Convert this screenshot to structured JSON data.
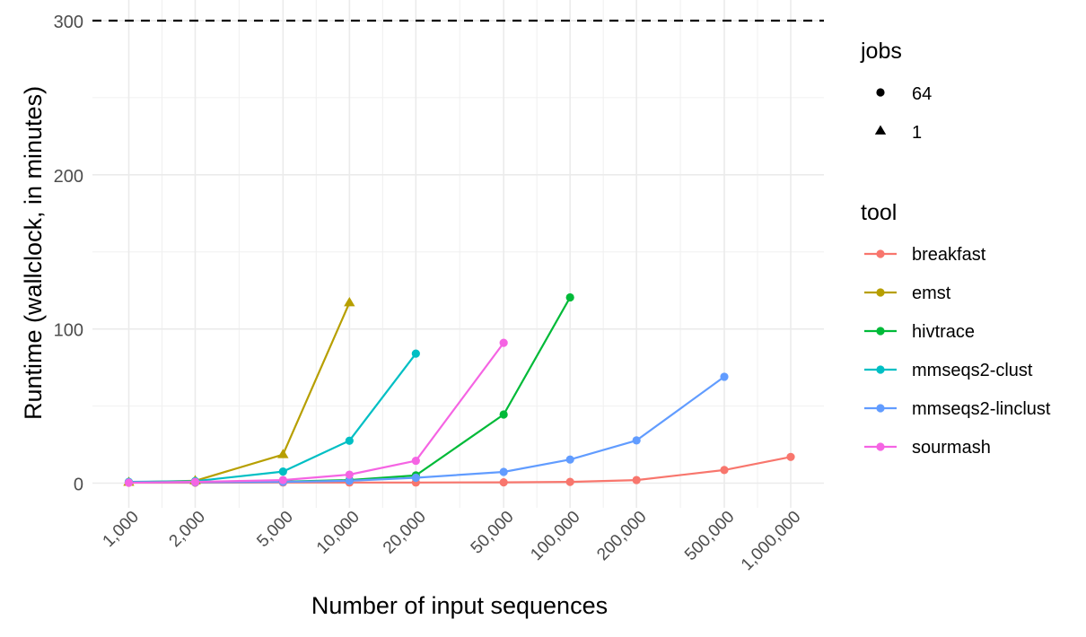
{
  "chart_data": {
    "type": "line",
    "xlabel": "Number of input sequences",
    "ylabel": "Runtime (wallclock, in minutes)",
    "x_scale": "log10",
    "xlim": [
      1000,
      1000000
    ],
    "ylim": [
      0,
      300
    ],
    "x_ticks": [
      1000,
      2000,
      5000,
      10000,
      20000,
      50000,
      100000,
      200000,
      500000,
      1000000
    ],
    "x_tick_labels": [
      "1,000",
      "2,000",
      "5,000",
      "10,000",
      "20,000",
      "50,000",
      "100,000",
      "200,000",
      "500,000",
      "1,000,000"
    ],
    "y_ticks": [
      0,
      100,
      200,
      300
    ],
    "y_tick_labels": [
      "0",
      "100",
      "200",
      "300"
    ],
    "reference_line": {
      "y": 300,
      "style": "dashed",
      "color": "#000000"
    },
    "grid": true,
    "legend_placement": "right",
    "legends": {
      "jobs": {
        "title": "jobs",
        "items": [
          {
            "label": "64",
            "shape": "circle"
          },
          {
            "label": "1",
            "shape": "triangle"
          }
        ]
      },
      "tool": {
        "title": "tool",
        "items": [
          "breakfast",
          "emst",
          "hivtrace",
          "mmseqs2-clust",
          "mmseqs2-linclust",
          "sourmash"
        ]
      }
    },
    "series": [
      {
        "name": "breakfast",
        "color": "#F8766D",
        "points": [
          {
            "x": 1000,
            "y": 0.3,
            "jobs": "64"
          },
          {
            "x": 2000,
            "y": 0.3,
            "jobs": "64"
          },
          {
            "x": 5000,
            "y": 0.4,
            "jobs": "64"
          },
          {
            "x": 10000,
            "y": 0.4,
            "jobs": "64"
          },
          {
            "x": 20000,
            "y": 0.4,
            "jobs": "64"
          },
          {
            "x": 50000,
            "y": 0.5,
            "jobs": "64"
          },
          {
            "x": 100000,
            "y": 0.8,
            "jobs": "64"
          },
          {
            "x": 200000,
            "y": 2,
            "jobs": "64"
          },
          {
            "x": 500000,
            "y": 8.5,
            "jobs": "64"
          },
          {
            "x": 1000000,
            "y": 17,
            "jobs": "64"
          }
        ]
      },
      {
        "name": "emst",
        "color": "#B79F00",
        "points": [
          {
            "x": 1000,
            "y": 0.5,
            "jobs": "1"
          },
          {
            "x": 2000,
            "y": 1.5,
            "jobs": "1"
          },
          {
            "x": 5000,
            "y": 18.5,
            "jobs": "1"
          },
          {
            "x": 10000,
            "y": 117,
            "jobs": "1"
          }
        ]
      },
      {
        "name": "hivtrace",
        "color": "#00BA38",
        "points": [
          {
            "x": 1000,
            "y": 0.5,
            "jobs": "64"
          },
          {
            "x": 2000,
            "y": 0.7,
            "jobs": "64"
          },
          {
            "x": 5000,
            "y": 1,
            "jobs": "64"
          },
          {
            "x": 10000,
            "y": 2,
            "jobs": "64"
          },
          {
            "x": 20000,
            "y": 5,
            "jobs": "64"
          },
          {
            "x": 50000,
            "y": 44.5,
            "jobs": "64"
          },
          {
            "x": 100000,
            "y": 120.5,
            "jobs": "64"
          }
        ]
      },
      {
        "name": "mmseqs2-clust",
        "color": "#00BFC4",
        "points": [
          {
            "x": 1000,
            "y": 0.8,
            "jobs": "64"
          },
          {
            "x": 2000,
            "y": 1.3,
            "jobs": "64"
          },
          {
            "x": 5000,
            "y": 7.5,
            "jobs": "64"
          },
          {
            "x": 10000,
            "y": 27.5,
            "jobs": "64"
          },
          {
            "x": 20000,
            "y": 84,
            "jobs": "64"
          }
        ]
      },
      {
        "name": "mmseqs2-linclust",
        "color": "#619CFF",
        "points": [
          {
            "x": 1000,
            "y": 0.5,
            "jobs": "64"
          },
          {
            "x": 2000,
            "y": 0.6,
            "jobs": "64"
          },
          {
            "x": 5000,
            "y": 0.8,
            "jobs": "64"
          },
          {
            "x": 10000,
            "y": 1.5,
            "jobs": "64"
          },
          {
            "x": 20000,
            "y": 3.5,
            "jobs": "64"
          },
          {
            "x": 50000,
            "y": 7.3,
            "jobs": "64"
          },
          {
            "x": 100000,
            "y": 15.3,
            "jobs": "64"
          },
          {
            "x": 200000,
            "y": 27.7,
            "jobs": "64"
          },
          {
            "x": 500000,
            "y": 69,
            "jobs": "64"
          }
        ]
      },
      {
        "name": "sourmash",
        "color": "#F564E3",
        "points": [
          {
            "x": 1000,
            "y": 0.3,
            "jobs": "64"
          },
          {
            "x": 2000,
            "y": 0.8,
            "jobs": "64"
          },
          {
            "x": 5000,
            "y": 2,
            "jobs": "64"
          },
          {
            "x": 10000,
            "y": 5.5,
            "jobs": "64"
          },
          {
            "x": 20000,
            "y": 14.5,
            "jobs": "64"
          },
          {
            "x": 50000,
            "y": 91,
            "jobs": "64"
          }
        ]
      }
    ]
  }
}
